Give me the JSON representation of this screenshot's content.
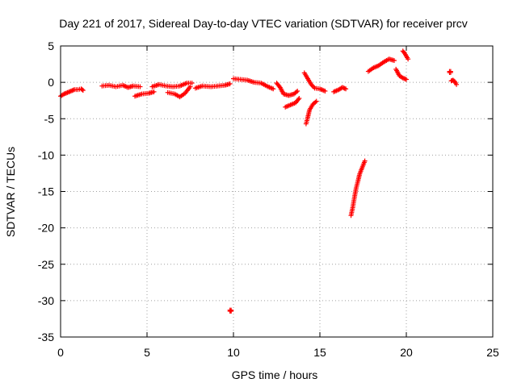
{
  "chart_data": {
    "type": "scatter",
    "title": "Day 221 of 2017, Sidereal Day-to-day VTEC variation (SDTVAR) for receiver prcv",
    "xlabel": "GPS time / hours",
    "ylabel": "SDTVAR / TECUs",
    "xlim": [
      0,
      25
    ],
    "ylim": [
      -35,
      5
    ],
    "xticks": [
      0,
      5,
      10,
      15,
      20,
      25
    ],
    "yticks": [
      5,
      0,
      -5,
      -10,
      -15,
      -20,
      -25,
      -30,
      -35
    ],
    "grid": true,
    "marker": "+",
    "color": "#ff0000",
    "series": [
      {
        "segments": [
          [
            [
              0.0,
              -1.9
            ],
            [
              0.2,
              -1.6
            ],
            [
              0.4,
              -1.4
            ],
            [
              0.6,
              -1.2
            ],
            [
              0.8,
              -1.0
            ],
            [
              1.0,
              -1.0
            ],
            [
              1.2,
              -0.9
            ],
            [
              1.3,
              -1.1
            ]
          ],
          [
            [
              2.4,
              -0.5
            ],
            [
              2.8,
              -0.4
            ],
            [
              3.2,
              -0.6
            ],
            [
              3.6,
              -0.4
            ],
            [
              3.9,
              -0.7
            ],
            [
              4.2,
              -0.5
            ],
            [
              4.6,
              -0.6
            ]
          ],
          [
            [
              4.3,
              -1.9
            ],
            [
              4.7,
              -1.6
            ],
            [
              5.1,
              -1.5
            ],
            [
              5.4,
              -1.3
            ]
          ],
          [
            [
              5.3,
              -0.6
            ],
            [
              5.7,
              -0.3
            ],
            [
              6.1,
              -0.5
            ],
            [
              6.5,
              -0.6
            ],
            [
              6.9,
              -0.5
            ],
            [
              7.3,
              -0.1
            ],
            [
              7.6,
              -0.1
            ]
          ],
          [
            [
              6.2,
              -1.4
            ],
            [
              6.6,
              -1.6
            ],
            [
              6.9,
              -2.0
            ],
            [
              7.2,
              -1.5
            ],
            [
              7.5,
              -0.6
            ]
          ],
          [
            [
              7.8,
              -0.8
            ],
            [
              8.2,
              -0.5
            ],
            [
              8.7,
              -0.6
            ],
            [
              9.1,
              -0.5
            ],
            [
              9.5,
              -0.4
            ],
            [
              9.8,
              -0.2
            ]
          ],
          [
            [
              10.0,
              0.5
            ],
            [
              10.4,
              0.4
            ],
            [
              10.8,
              0.3
            ],
            [
              11.2,
              0.0
            ],
            [
              11.6,
              -0.1
            ],
            [
              12.0,
              -0.6
            ],
            [
              12.3,
              -0.9
            ]
          ],
          [
            [
              12.5,
              -0.1
            ],
            [
              12.7,
              -0.7
            ],
            [
              12.9,
              -1.6
            ],
            [
              13.2,
              -1.8
            ],
            [
              13.5,
              -1.6
            ],
            [
              13.7,
              -1.2
            ]
          ],
          [
            [
              13.0,
              -3.4
            ],
            [
              13.3,
              -3.1
            ],
            [
              13.6,
              -2.8
            ],
            [
              13.8,
              -2.2
            ]
          ],
          [
            [
              14.1,
              1.3
            ],
            [
              14.3,
              0.5
            ],
            [
              14.5,
              -0.3
            ],
            [
              14.7,
              -0.8
            ],
            [
              15.0,
              -0.9
            ],
            [
              15.3,
              -1.2
            ]
          ],
          [
            [
              14.2,
              -5.7
            ],
            [
              14.3,
              -4.8
            ],
            [
              14.4,
              -3.8
            ],
            [
              14.6,
              -3.0
            ],
            [
              14.8,
              -2.6
            ]
          ],
          [
            [
              15.8,
              -1.3
            ],
            [
              16.1,
              -1.0
            ],
            [
              16.3,
              -0.7
            ],
            [
              16.5,
              -0.9
            ]
          ],
          [
            [
              16.8,
              -18.3
            ],
            [
              16.9,
              -17.2
            ],
            [
              17.0,
              -15.8
            ],
            [
              17.1,
              -14.5
            ],
            [
              17.2,
              -13.6
            ],
            [
              17.3,
              -12.6
            ],
            [
              17.5,
              -11.4
            ],
            [
              17.6,
              -10.8
            ]
          ],
          [
            [
              17.8,
              1.5
            ],
            [
              18.1,
              2.0
            ],
            [
              18.4,
              2.3
            ],
            [
              18.7,
              2.8
            ],
            [
              19.0,
              3.2
            ],
            [
              19.3,
              3.0
            ]
          ],
          [
            [
              19.4,
              1.8
            ],
            [
              19.6,
              0.9
            ],
            [
              19.8,
              0.6
            ],
            [
              20.0,
              0.4
            ]
          ],
          [
            [
              19.8,
              4.3
            ],
            [
              19.9,
              4.0
            ],
            [
              20.0,
              3.6
            ],
            [
              20.1,
              3.2
            ]
          ],
          [
            [
              9.8,
              -31.3
            ]
          ],
          [
            [
              22.5,
              1.5
            ]
          ],
          [
            [
              22.6,
              0.2
            ],
            [
              22.7,
              0.3
            ],
            [
              22.8,
              0.1
            ],
            [
              22.9,
              -0.3
            ]
          ]
        ]
      }
    ]
  }
}
